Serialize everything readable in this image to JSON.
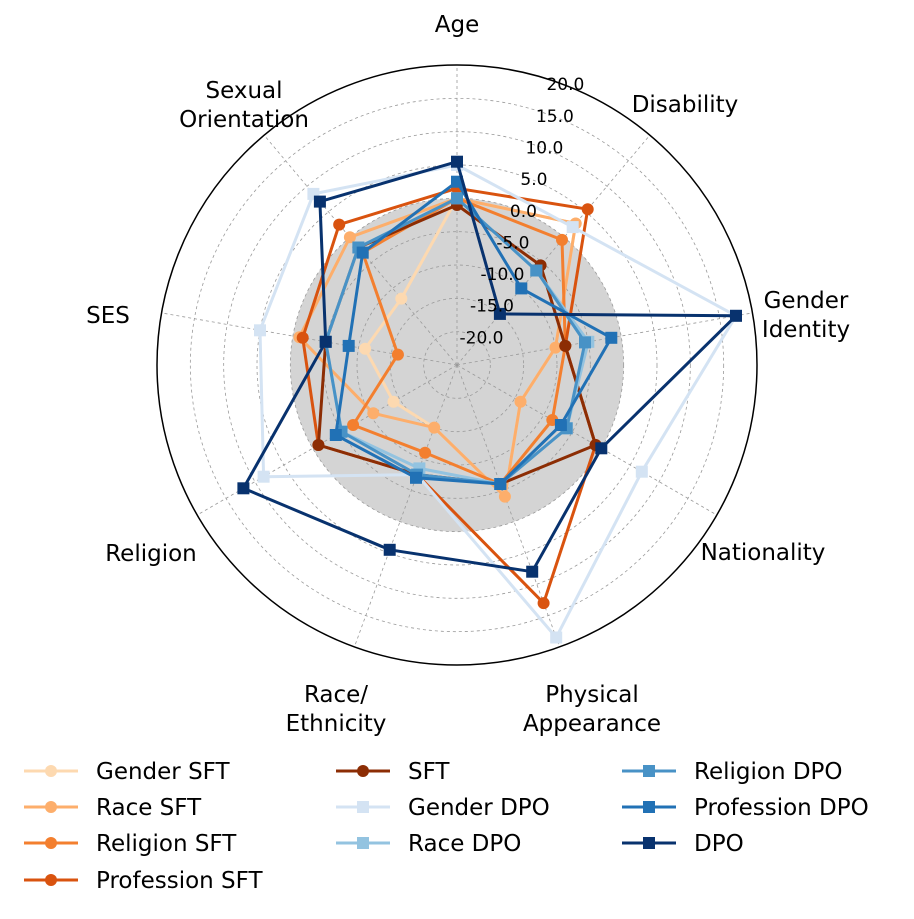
{
  "chart_data": {
    "type": "radar",
    "title": "",
    "categories": [
      "Age",
      "Disability",
      "Gender Identity",
      "Nationality",
      "Physical Appearance",
      "Race/ Ethnicity",
      "Religion",
      "SES",
      "Sexual Orientation"
    ],
    "rlim": [
      -25,
      20
    ],
    "radial_ticks": [
      -20,
      -15,
      -10,
      -5,
      0,
      5,
      10,
      15,
      20
    ],
    "radial_tick_labels": [
      "-20.0",
      "-15.0",
      "-10.0",
      "-5.0",
      "0.0",
      "5.0",
      "10.0",
      "15.0",
      "20.0"
    ],
    "baseline": 0,
    "grid": true,
    "legend_position": "bottom",
    "series": [
      {
        "name": "Gender SFT",
        "color": "#fdd9b0",
        "marker": "circle",
        "values": [
          0.0,
          2.7,
          -10.0,
          -14.0,
          -4.0,
          -15.0,
          -14.0,
          -11.0,
          -12.0
        ]
      },
      {
        "name": "Race SFT",
        "color": "#fdae6b",
        "marker": "circle",
        "values": [
          0.0,
          2.7,
          -10.0,
          -14.0,
          -4.0,
          -15.0,
          -10.5,
          -1.0,
          0.0
        ]
      },
      {
        "name": "Religion SFT",
        "color": "#f37f2f",
        "marker": "circle",
        "values": [
          0.0,
          -0.5,
          -8.5,
          -8.5,
          -6.0,
          -11.0,
          -7.0,
          -16.0,
          -3.0
        ]
      },
      {
        "name": "Profession SFT",
        "color": "#d9530f",
        "marker": "circle",
        "values": [
          1.5,
          5.5,
          -8.5,
          -1.0,
          13.0,
          -7.5,
          -1.0,
          -1.5,
          2.5
        ]
      },
      {
        "name": "SFT",
        "color": "#8c2d04",
        "marker": "circle",
        "values": [
          -1.0,
          -5.5,
          -8.5,
          -1.0,
          -6.0,
          -7.5,
          -1.0,
          -5.0,
          -2.0
        ]
      },
      {
        "name": "Gender DPO",
        "color": "#d4e3f3",
        "marker": "square",
        "values": [
          5.0,
          2.0,
          17.5,
          7.0,
          18.5,
          -7.5,
          8.5,
          5.0,
          8.5
        ]
      },
      {
        "name": "Race DPO",
        "color": "#93c3e0",
        "marker": "square",
        "values": [
          0.0,
          -6.5,
          -5.0,
          -6.0,
          -6.0,
          -8.5,
          -5.0,
          -5.0,
          -2.0
        ]
      },
      {
        "name": "Religion DPO",
        "color": "#4892c6",
        "marker": "square",
        "values": [
          0.0,
          -6.5,
          -5.5,
          -6.0,
          -6.0,
          -7.5,
          -5.0,
          -5.0,
          -2.0
        ]
      },
      {
        "name": "Profession DPO",
        "color": "#2171b5",
        "marker": "square",
        "values": [
          2.5,
          -10.0,
          -1.5,
          -7.0,
          -6.0,
          -7.0,
          -4.0,
          -8.5,
          -3.0
        ]
      },
      {
        "name": "DPO",
        "color": "#08326e",
        "marker": "square",
        "values": [
          5.5,
          -15.0,
          17.5,
          0.0,
          8.0,
          4.5,
          12.0,
          -5.0,
          7.0
        ]
      }
    ]
  }
}
